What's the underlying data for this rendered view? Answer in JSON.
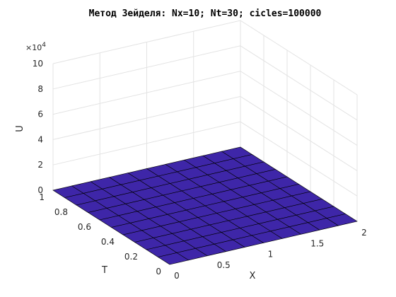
{
  "chart_data": {
    "type": "surface",
    "title": "Метод Зейделя: Nx=10; Nt=30; cicles=100000",
    "xlabel": "X",
    "ylabel": "T",
    "zlabel": "U",
    "z_exponent_base": "×10",
    "z_exponent_power": "4",
    "xlim": [
      0,
      2
    ],
    "ylim": [
      0,
      1
    ],
    "zlim": [
      0,
      100000
    ],
    "x_ticks": [
      0,
      0.5,
      1,
      1.5,
      2
    ],
    "x_tick_labels": [
      "0",
      "0.5",
      "1",
      "1.5",
      "2"
    ],
    "y_ticks": [
      0,
      0.2,
      0.4,
      0.6,
      0.8,
      1
    ],
    "y_tick_labels": [
      "0",
      "0.2",
      "0.4",
      "0.6",
      "0.8",
      "1"
    ],
    "z_ticks": [
      0,
      20000,
      40000,
      60000,
      80000,
      100000
    ],
    "z_tick_labels": [
      "0",
      "2",
      "4",
      "6",
      "8",
      "10"
    ],
    "grid": true,
    "colormap": "parula",
    "x": [
      0,
      0.2,
      0.4,
      0.6,
      0.8,
      1.0,
      1.2,
      1.4,
      1.6,
      1.8,
      2.0
    ],
    "t": [
      0,
      0.1,
      0.2,
      0.3,
      0.4,
      0.5,
      0.6,
      0.7,
      0.8,
      0.9,
      1.0
    ],
    "u": [
      [
        0,
        0,
        0,
        0,
        0,
        0,
        0,
        0,
        0,
        0,
        0
      ],
      [
        0,
        0,
        0,
        0,
        0,
        0,
        0,
        0,
        0,
        0,
        0
      ],
      [
        0,
        0,
        0,
        0,
        0,
        0,
        0,
        0,
        0,
        0,
        0
      ],
      [
        0,
        0,
        0,
        0,
        0,
        0,
        0,
        0,
        0,
        0,
        0
      ],
      [
        0,
        0,
        0,
        0,
        0,
        0,
        0,
        0,
        0,
        0,
        0
      ],
      [
        0,
        0,
        0,
        0,
        0,
        0,
        0,
        0,
        0,
        0,
        0
      ],
      [
        0,
        0,
        0,
        0,
        0,
        0,
        0,
        0,
        0,
        0,
        0
      ],
      [
        0,
        0,
        0,
        0,
        0,
        0,
        0,
        0,
        0,
        0,
        0
      ],
      [
        0,
        0,
        0,
        0,
        0,
        0,
        0,
        0,
        0,
        0,
        0
      ],
      [
        0,
        0,
        0,
        0,
        0,
        0,
        0,
        0,
        0,
        0,
        0
      ],
      [
        0,
        0,
        0,
        0,
        0,
        0,
        0,
        0,
        0,
        0,
        0
      ]
    ]
  }
}
